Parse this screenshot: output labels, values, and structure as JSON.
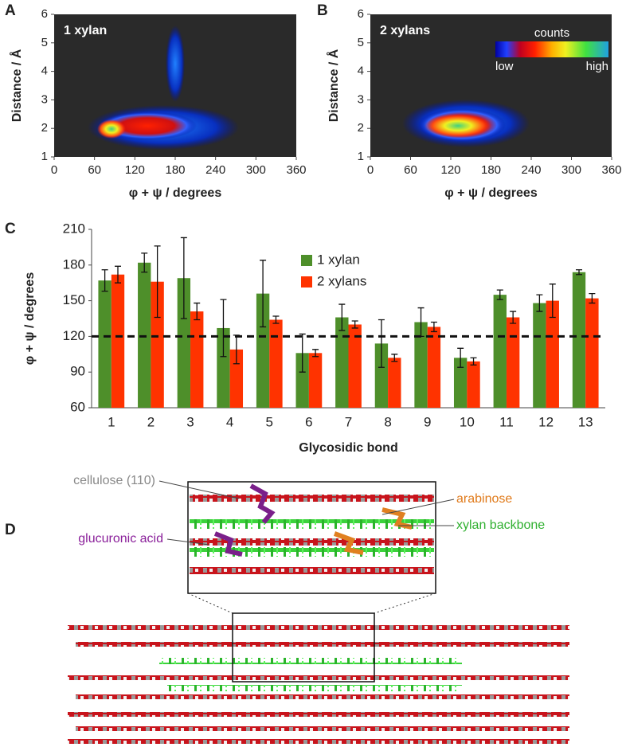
{
  "chart_data": [
    {
      "type": "heatmap",
      "panel": "A",
      "title": "1 xylan",
      "x_label": "φ + ψ / degrees",
      "y_label": "Distance / Å",
      "xlim": [
        0,
        360
      ],
      "xticks": [
        0,
        60,
        120,
        180,
        240,
        300,
        360
      ],
      "ylim": [
        1,
        6
      ],
      "yticks": [
        1,
        2,
        3,
        4,
        5,
        6
      ]
    },
    {
      "type": "heatmap",
      "panel": "B",
      "title": "2 xylans",
      "x_label": "φ + ψ / degrees",
      "y_label": "Distance / Å",
      "xlim": [
        0,
        360
      ],
      "xticks": [
        0,
        60,
        120,
        180,
        240,
        300,
        360
      ],
      "ylim": [
        1,
        6
      ],
      "yticks": [
        1,
        2,
        3,
        4,
        5,
        6
      ],
      "colorbar": {
        "title": "counts",
        "low": "low",
        "high": "high"
      }
    },
    {
      "type": "bar",
      "panel": "C",
      "x_label": "Glycosidic bond",
      "y_label": "φ + ψ / degrees",
      "categories": [
        "1",
        "2",
        "3",
        "4",
        "5",
        "6",
        "7",
        "8",
        "9",
        "10",
        "11",
        "12",
        "13"
      ],
      "series": [
        {
          "name": "1 xylan",
          "color": "#4e8f2a",
          "values": [
            167,
            182,
            169,
            127,
            156,
            106,
            136,
            114,
            132,
            102,
            155,
            148,
            174
          ],
          "errors": [
            9,
            8,
            34,
            24,
            28,
            16,
            11,
            20,
            12,
            8,
            4,
            7,
            2
          ]
        },
        {
          "name": "2 xylans",
          "color": "#ff3300",
          "values": [
            172,
            166,
            141,
            109,
            134,
            106,
            130,
            102,
            128,
            99,
            136,
            150,
            152
          ],
          "errors": [
            7,
            30,
            7,
            12,
            3,
            3,
            3,
            3,
            4,
            3,
            5,
            14,
            4
          ]
        }
      ],
      "ylim": [
        60,
        210
      ],
      "yticks": [
        60,
        90,
        120,
        150,
        180,
        210
      ],
      "reference_line": 120
    }
  ],
  "figure_d": {
    "panel": "D",
    "labels": {
      "cellulose": "cellulose (110)",
      "arabinose": "arabinose",
      "glucuronic": "glucuronic acid",
      "xylan": "xylan backbone"
    }
  }
}
